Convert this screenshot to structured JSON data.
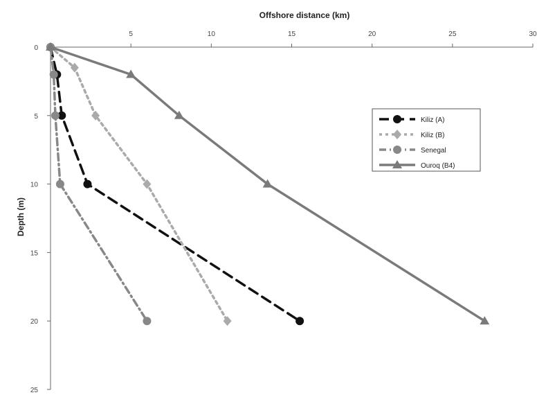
{
  "chart_data": {
    "type": "line",
    "xlabel": "Offshore distance (km)",
    "ylabel": "Depth (m)",
    "x_axis_position": "top",
    "xlim": [
      0,
      30
    ],
    "ylim": [
      0,
      25
    ],
    "y_inverted": true,
    "x_ticks": [
      0,
      5,
      10,
      15,
      20,
      25,
      30
    ],
    "x_tick_labels": [
      "",
      "5",
      "10",
      "15",
      "20",
      "25",
      "30"
    ],
    "y_ticks": [
      0,
      5,
      10,
      15,
      20,
      25
    ],
    "y_tick_labels": [
      "0",
      "5",
      "10",
      "15",
      "20",
      "25"
    ],
    "grid": false,
    "legend_position": "right",
    "series": [
      {
        "name": "Kiliz (A)",
        "color": "#111111",
        "dash": "14,8",
        "marker": "circle",
        "points": [
          [
            0,
            0
          ],
          [
            0.4,
            2
          ],
          [
            0.7,
            5
          ],
          [
            2.3,
            10
          ],
          [
            15.5,
            20
          ]
        ]
      },
      {
        "name": "Kiliz (B)",
        "color": "#aaaaaa",
        "dash": "4,5",
        "marker": "diamond",
        "points": [
          [
            0,
            0
          ],
          [
            1.5,
            1.5
          ],
          [
            2.8,
            5
          ],
          [
            6,
            10
          ],
          [
            11,
            20
          ]
        ]
      },
      {
        "name": "Senegal",
        "color": "#888888",
        "dash": "10,5,2,5",
        "marker": "circle",
        "points": [
          [
            0,
            0
          ],
          [
            0.2,
            2
          ],
          [
            0.3,
            5
          ],
          [
            0.6,
            10
          ],
          [
            6,
            20
          ]
        ]
      },
      {
        "name": "Ouroq (B4)",
        "color": "#7a7a7a",
        "dash": "",
        "marker": "triangle",
        "points": [
          [
            0,
            0
          ],
          [
            5,
            2
          ],
          [
            8,
            5
          ],
          [
            13.5,
            10
          ],
          [
            27,
            20
          ]
        ]
      }
    ]
  }
}
